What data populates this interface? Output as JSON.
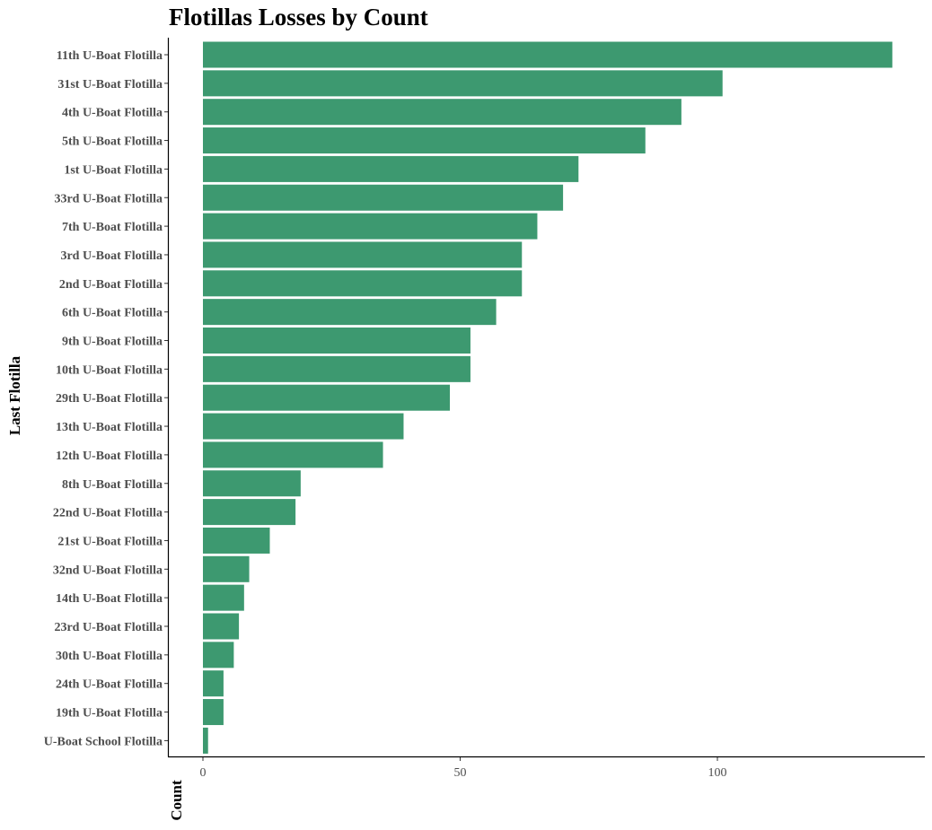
{
  "chart_data": {
    "type": "bar",
    "orientation": "horizontal",
    "title": "Flotillas Losses by Count",
    "xlabel": "Count",
    "ylabel": "Last Flotilla",
    "bar_color": "#3d9970",
    "xlim": [
      -6.5,
      141
    ],
    "xticks": [
      0,
      50,
      100
    ],
    "grid": false,
    "categories": [
      "11th U-Boat Flotilla",
      "31st U-Boat Flotilla",
      "4th U-Boat Flotilla",
      "5th U-Boat Flotilla",
      "1st U-Boat Flotilla",
      "33rd U-Boat Flotilla",
      "7th U-Boat Flotilla",
      "3rd U-Boat Flotilla",
      "2nd U-Boat Flotilla",
      "6th U-Boat Flotilla",
      "9th U-Boat Flotilla",
      "10th U-Boat Flotilla",
      "29th U-Boat Flotilla",
      "13th U-Boat Flotilla",
      "12th U-Boat Flotilla",
      "8th U-Boat Flotilla",
      "22nd U-Boat Flotilla",
      "21st U-Boat Flotilla",
      "32nd U-Boat Flotilla",
      "14th U-Boat Flotilla",
      "23rd U-Boat Flotilla",
      "30th U-Boat Flotilla",
      "24th U-Boat Flotilla",
      "19th U-Boat Flotilla",
      "U-Boat School Flotilla"
    ],
    "values": [
      134,
      101,
      93,
      86,
      73,
      70,
      65,
      62,
      62,
      57,
      52,
      52,
      48,
      39,
      35,
      19,
      18,
      13,
      9,
      8,
      7,
      6,
      4,
      4,
      1
    ]
  }
}
